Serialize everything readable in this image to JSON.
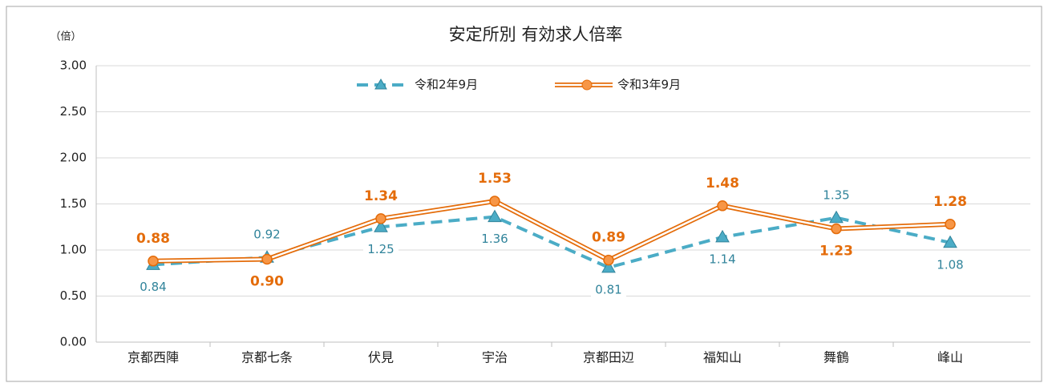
{
  "chart_data": {
    "type": "line",
    "title": "安定所別 有効求人倍率",
    "y_unit": "（倍）",
    "categories": [
      "京都西陣",
      "京都七条",
      "伏見",
      "宇治",
      "京都田辺",
      "福知山",
      "舞鶴",
      "峰山"
    ],
    "series": [
      {
        "name": "令和2年9月",
        "color": "#4bacc6",
        "values": [
          0.84,
          0.92,
          1.25,
          1.36,
          0.81,
          1.14,
          1.35,
          1.08
        ],
        "value_labels": [
          "0.84",
          "0.92",
          "1.25",
          "1.36",
          "0.81",
          "1.14",
          "1.35",
          "1.08"
        ]
      },
      {
        "name": "令和3年9月",
        "color": "#f79646",
        "values": [
          0.88,
          0.9,
          1.34,
          1.53,
          0.89,
          1.48,
          1.23,
          1.28
        ],
        "value_labels": [
          "0.88",
          "0.90",
          "1.34",
          "1.53",
          "0.89",
          "1.48",
          "1.23",
          "1.28"
        ]
      }
    ],
    "ylim": [
      0,
      3
    ],
    "yticks": [
      {
        "value": 0,
        "label": "0.00"
      },
      {
        "value": 0.5,
        "label": "0.50"
      },
      {
        "value": 1,
        "label": "1.00"
      },
      {
        "value": 1.5,
        "label": "1.50"
      },
      {
        "value": 2,
        "label": "2.00"
      },
      {
        "value": 2.5,
        "label": "2.50"
      },
      {
        "value": 3,
        "label": "3.00"
      }
    ],
    "grid": true
  }
}
